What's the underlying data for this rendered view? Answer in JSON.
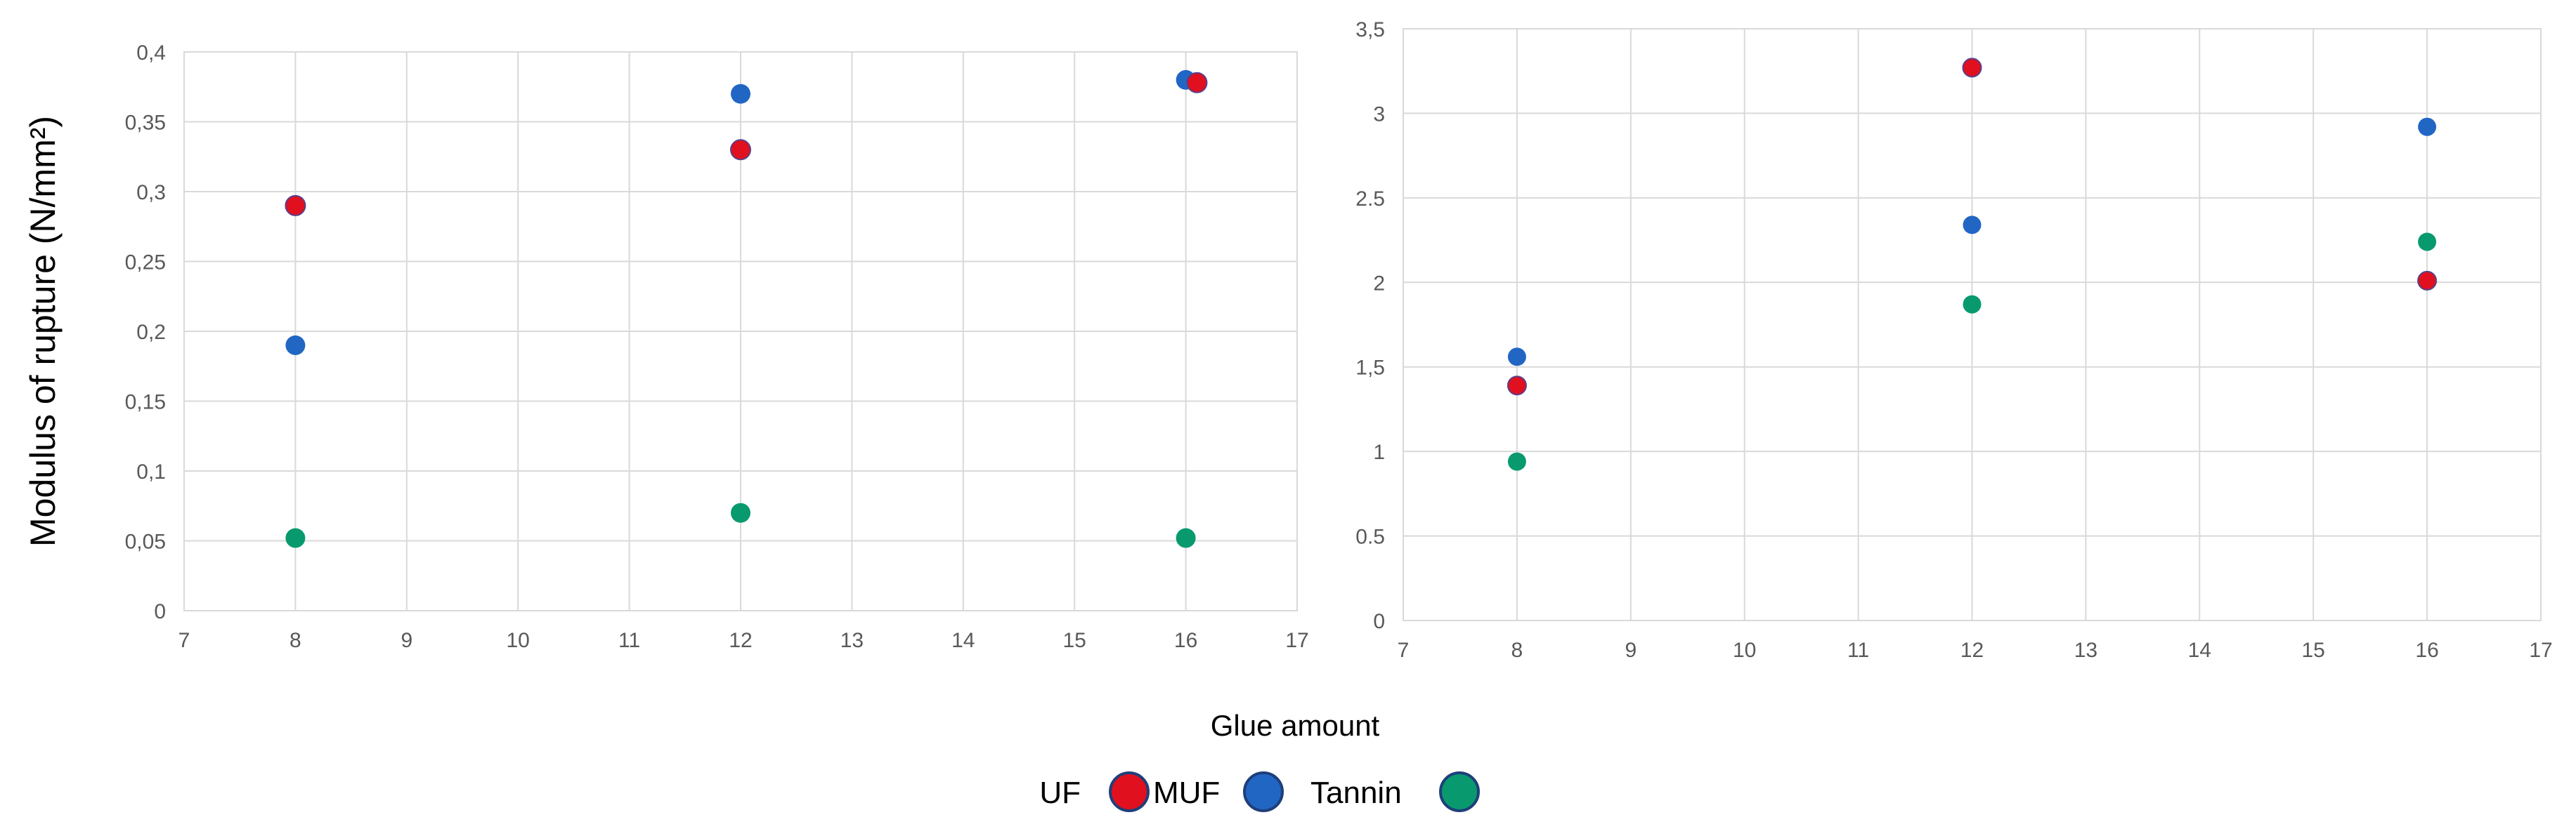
{
  "colors": {
    "UF": "#e0101e",
    "MUF": "#2266c4",
    "Tannin": "#089a6e"
  },
  "shared": {
    "xlabel": "Glue amount",
    "ylabel": "Modulus of rupture (N/mm²)",
    "legend": [
      "UF",
      "MUF",
      "Tannin"
    ]
  },
  "chart_data": [
    {
      "type": "scatter",
      "title": "",
      "xlabel": "Glue amount",
      "ylabel": "Modulus of rupture (N/mm²)",
      "xlim": [
        7,
        17
      ],
      "ylim": [
        0,
        0.4
      ],
      "xticks": [
        "7",
        "8",
        "9",
        "10",
        "11",
        "12",
        "13",
        "14",
        "15",
        "16",
        "17"
      ],
      "yticks": [
        "0",
        "0,05",
        "0,1",
        "0,15",
        "0,2",
        "0,25",
        "0,3",
        "0,35",
        "0,4"
      ],
      "grid": true,
      "series": [
        {
          "name": "UF",
          "x": [
            8,
            12,
            16.1
          ],
          "y": [
            0.29,
            0.33,
            0.378
          ]
        },
        {
          "name": "MUF",
          "x": [
            8,
            12,
            16
          ],
          "y": [
            0.19,
            0.37,
            0.38
          ]
        },
        {
          "name": "Tannin",
          "x": [
            8,
            12,
            16
          ],
          "y": [
            0.052,
            0.07,
            0.052
          ]
        }
      ]
    },
    {
      "type": "scatter",
      "title": "",
      "xlabel": "Glue amount",
      "ylabel": "",
      "xlim": [
        7,
        17
      ],
      "ylim": [
        0,
        3.5
      ],
      "xticks": [
        "7",
        "8",
        "9",
        "10",
        "11",
        "12",
        "13",
        "14",
        "15",
        "16",
        "17"
      ],
      "yticks": [
        "0",
        "0.5",
        "1",
        "1,5",
        "2",
        "2.5",
        "3",
        "3,5"
      ],
      "grid": true,
      "series": [
        {
          "name": "UF",
          "x": [
            8,
            12,
            16
          ],
          "y": [
            1.39,
            3.27,
            2.01
          ]
        },
        {
          "name": "MUF",
          "x": [
            8,
            12,
            16
          ],
          "y": [
            1.56,
            2.34,
            2.92
          ]
        },
        {
          "name": "Tannin",
          "x": [
            8,
            12,
            16
          ],
          "y": [
            0.94,
            1.87,
            2.24
          ]
        }
      ]
    }
  ]
}
